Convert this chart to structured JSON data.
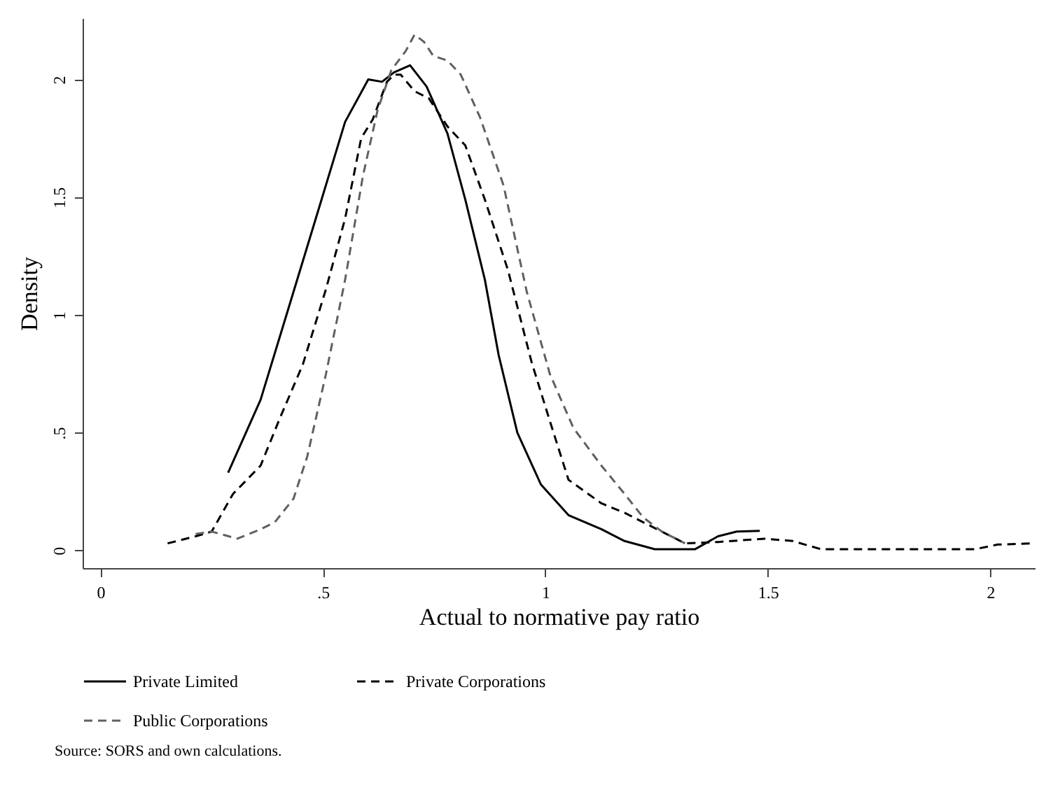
{
  "chart_data": {
    "type": "line",
    "xlabel": "Actual to normative pay ratio",
    "ylabel": "Density",
    "annotations": [
      "Source: SORS and own calculations."
    ],
    "xlim": [
      -0.04,
      2.1
    ],
    "ylim": [
      -0.075,
      2.26
    ],
    "xticks": [
      0,
      {
        "value": 0.5,
        "label": ".5"
      },
      1,
      1.5,
      2
    ],
    "yticks": [
      0,
      {
        "value": 0.5,
        "label": ".5"
      },
      1,
      1.5,
      2
    ],
    "grid": false,
    "legend": "bottom",
    "marker": "none",
    "series": [
      {
        "name": "Private Limited",
        "color": "#000000",
        "line_style": "solid",
        "x": [
          0.287,
          0.36,
          0.423,
          0.497,
          0.55,
          0.602,
          0.633,
          0.66,
          0.696,
          0.733,
          0.78,
          0.82,
          0.864,
          0.895,
          0.937,
          0.99,
          1.052,
          1.126,
          1.178,
          1.246,
          1.336,
          1.388,
          1.43,
          1.482
        ],
        "values": [
          0.33,
          0.64,
          1.03,
          1.49,
          1.82,
          2.0,
          1.99,
          2.03,
          2.06,
          1.97,
          1.77,
          1.49,
          1.15,
          0.83,
          0.5,
          0.28,
          0.15,
          0.09,
          0.04,
          0.005,
          0.005,
          0.06,
          0.08,
          0.083
        ]
      },
      {
        "name": "Private Corporations",
        "color": "#000000",
        "line_style": "dashed",
        "x": [
          0.151,
          0.214,
          0.25,
          0.298,
          0.36,
          0.403,
          0.455,
          0.507,
          0.55,
          0.586,
          0.612,
          0.644,
          0.66,
          0.675,
          0.706,
          0.738,
          0.78,
          0.82,
          0.864,
          0.916,
          0.969,
          1.01,
          1.052,
          1.126,
          1.178,
          1.251,
          1.314,
          1.388,
          1.493,
          1.556,
          1.62,
          1.965,
          2.017,
          2.096
        ],
        "values": [
          0.03,
          0.06,
          0.08,
          0.24,
          0.36,
          0.56,
          0.79,
          1.11,
          1.41,
          1.75,
          1.83,
          1.99,
          2.02,
          2.02,
          1.95,
          1.92,
          1.8,
          1.72,
          1.49,
          1.19,
          0.8,
          0.55,
          0.3,
          0.2,
          0.16,
          0.09,
          0.03,
          0.036,
          0.05,
          0.04,
          0.005,
          0.005,
          0.025,
          0.03
        ]
      },
      {
        "name": "Public Corporations",
        "color": "#606060",
        "line_style": "dashed",
        "x": [
          0.214,
          0.25,
          0.308,
          0.36,
          0.392,
          0.434,
          0.465,
          0.507,
          0.55,
          0.59,
          0.623,
          0.654,
          0.686,
          0.706,
          0.727,
          0.748,
          0.78,
          0.81,
          0.853,
          0.906,
          0.958,
          1.01,
          1.063,
          1.126,
          1.178,
          1.22,
          1.262,
          1.314
        ],
        "values": [
          0.07,
          0.08,
          0.05,
          0.09,
          0.12,
          0.22,
          0.4,
          0.75,
          1.15,
          1.59,
          1.87,
          2.04,
          2.12,
          2.19,
          2.16,
          2.1,
          2.08,
          2.02,
          1.84,
          1.55,
          1.1,
          0.75,
          0.52,
          0.36,
          0.24,
          0.14,
          0.08,
          0.03
        ]
      }
    ]
  }
}
